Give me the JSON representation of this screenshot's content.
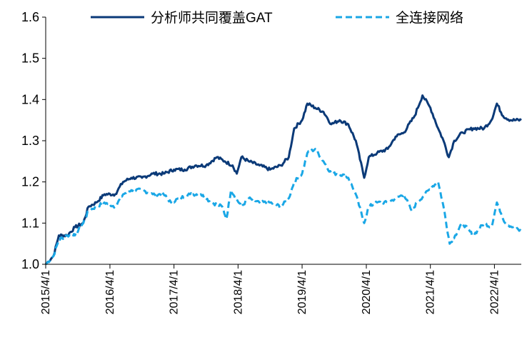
{
  "chart_data": {
    "type": "line",
    "title": "",
    "xlabel": "",
    "ylabel": "",
    "ylim": [
      1.0,
      1.6
    ],
    "y_ticks": [
      "1.0",
      "1.1",
      "1.2",
      "1.3",
      "1.4",
      "1.5",
      "1.6"
    ],
    "x_range": [
      "2015-04-01",
      "2022-09-01"
    ],
    "x_ticks": [
      "2015/4/1",
      "2016/4/1",
      "2017/4/1",
      "2018/4/1",
      "2019/4/1",
      "2020/4/1",
      "2021/4/1",
      "2022/4/1"
    ],
    "grid": false,
    "legend_position": "top",
    "series": [
      {
        "name": "分析师共同覆盖GAT",
        "color": "#0b3a78",
        "style": "solid",
        "points": [
          [
            "2015-04-01",
            1.0
          ],
          [
            "2015-05-15",
            1.02
          ],
          [
            "2015-06-15",
            1.07
          ],
          [
            "2015-08-01",
            1.07
          ],
          [
            "2015-09-15",
            1.09
          ],
          [
            "2015-11-01",
            1.1
          ],
          [
            "2015-12-01",
            1.14
          ],
          [
            "2016-01-15",
            1.15
          ],
          [
            "2016-03-01",
            1.17
          ],
          [
            "2016-05-01",
            1.17
          ],
          [
            "2016-06-15",
            1.2
          ],
          [
            "2016-08-01",
            1.21
          ],
          [
            "2016-10-01",
            1.21
          ],
          [
            "2016-12-01",
            1.22
          ],
          [
            "2017-02-01",
            1.22
          ],
          [
            "2017-04-01",
            1.23
          ],
          [
            "2017-06-01",
            1.23
          ],
          [
            "2017-08-01",
            1.24
          ],
          [
            "2017-10-01",
            1.24
          ],
          [
            "2017-12-01",
            1.26
          ],
          [
            "2018-01-15",
            1.25
          ],
          [
            "2018-03-01",
            1.24
          ],
          [
            "2018-03-25",
            1.22
          ],
          [
            "2018-04-20",
            1.26
          ],
          [
            "2018-06-01",
            1.25
          ],
          [
            "2018-08-01",
            1.24
          ],
          [
            "2018-10-01",
            1.23
          ],
          [
            "2018-12-01",
            1.24
          ],
          [
            "2019-01-15",
            1.26
          ],
          [
            "2019-02-15",
            1.33
          ],
          [
            "2019-04-01",
            1.35
          ],
          [
            "2019-05-01",
            1.39
          ],
          [
            "2019-06-15",
            1.38
          ],
          [
            "2019-08-01",
            1.37
          ],
          [
            "2019-09-15",
            1.34
          ],
          [
            "2019-11-01",
            1.35
          ],
          [
            "2019-12-20",
            1.34
          ],
          [
            "2020-02-01",
            1.3
          ],
          [
            "2020-03-20",
            1.21
          ],
          [
            "2020-04-15",
            1.26
          ],
          [
            "2020-06-01",
            1.27
          ],
          [
            "2020-08-01",
            1.28
          ],
          [
            "2020-09-15",
            1.31
          ],
          [
            "2020-11-01",
            1.32
          ],
          [
            "2021-01-01",
            1.36
          ],
          [
            "2021-02-15",
            1.41
          ],
          [
            "2021-04-01",
            1.38
          ],
          [
            "2021-05-15",
            1.33
          ],
          [
            "2021-06-15",
            1.3
          ],
          [
            "2021-07-15",
            1.26
          ],
          [
            "2021-08-15",
            1.3
          ],
          [
            "2021-10-01",
            1.32
          ],
          [
            "2021-12-01",
            1.33
          ],
          [
            "2022-02-01",
            1.33
          ],
          [
            "2022-03-15",
            1.35
          ],
          [
            "2022-04-15",
            1.39
          ],
          [
            "2022-05-20",
            1.36
          ],
          [
            "2022-07-01",
            1.35
          ],
          [
            "2022-09-01",
            1.35
          ]
        ]
      },
      {
        "name": "全连接网络",
        "color": "#1aa7e6",
        "style": "dashed",
        "points": [
          [
            "2015-04-01",
            1.0
          ],
          [
            "2015-05-15",
            1.02
          ],
          [
            "2015-06-15",
            1.06
          ],
          [
            "2015-08-01",
            1.07
          ],
          [
            "2015-09-15",
            1.07
          ],
          [
            "2015-11-01",
            1.1
          ],
          [
            "2015-12-01",
            1.13
          ],
          [
            "2016-01-15",
            1.14
          ],
          [
            "2016-03-01",
            1.15
          ],
          [
            "2016-05-01",
            1.14
          ],
          [
            "2016-06-15",
            1.17
          ],
          [
            "2016-08-01",
            1.18
          ],
          [
            "2016-10-01",
            1.18
          ],
          [
            "2016-12-01",
            1.17
          ],
          [
            "2017-02-01",
            1.17
          ],
          [
            "2017-03-15",
            1.15
          ],
          [
            "2017-05-01",
            1.16
          ],
          [
            "2017-07-01",
            1.17
          ],
          [
            "2017-09-01",
            1.17
          ],
          [
            "2017-11-01",
            1.15
          ],
          [
            "2018-01-01",
            1.14
          ],
          [
            "2018-01-25",
            1.11
          ],
          [
            "2018-02-20",
            1.18
          ],
          [
            "2018-04-20",
            1.14
          ],
          [
            "2018-06-01",
            1.16
          ],
          [
            "2018-08-01",
            1.15
          ],
          [
            "2018-10-01",
            1.15
          ],
          [
            "2018-12-01",
            1.14
          ],
          [
            "2019-01-15",
            1.16
          ],
          [
            "2019-02-15",
            1.2
          ],
          [
            "2019-04-01",
            1.22
          ],
          [
            "2019-05-01",
            1.27
          ],
          [
            "2019-06-15",
            1.28
          ],
          [
            "2019-08-01",
            1.25
          ],
          [
            "2019-09-15",
            1.22
          ],
          [
            "2019-11-01",
            1.22
          ],
          [
            "2019-12-20",
            1.21
          ],
          [
            "2020-02-01",
            1.17
          ],
          [
            "2020-03-20",
            1.1
          ],
          [
            "2020-04-15",
            1.14
          ],
          [
            "2020-06-01",
            1.15
          ],
          [
            "2020-08-01",
            1.15
          ],
          [
            "2020-09-15",
            1.16
          ],
          [
            "2020-11-01",
            1.17
          ],
          [
            "2020-12-15",
            1.13
          ],
          [
            "2021-01-15",
            1.15
          ],
          [
            "2021-03-01",
            1.17
          ],
          [
            "2021-04-15",
            1.19
          ],
          [
            "2021-05-15",
            1.2
          ],
          [
            "2021-06-15",
            1.14
          ],
          [
            "2021-07-20",
            1.05
          ],
          [
            "2021-08-20",
            1.07
          ],
          [
            "2021-10-01",
            1.1
          ],
          [
            "2021-12-01",
            1.07
          ],
          [
            "2022-02-01",
            1.1
          ],
          [
            "2022-03-15",
            1.09
          ],
          [
            "2022-04-15",
            1.15
          ],
          [
            "2022-06-01",
            1.1
          ],
          [
            "2022-07-15",
            1.09
          ],
          [
            "2022-09-01",
            1.08
          ]
        ]
      }
    ]
  }
}
